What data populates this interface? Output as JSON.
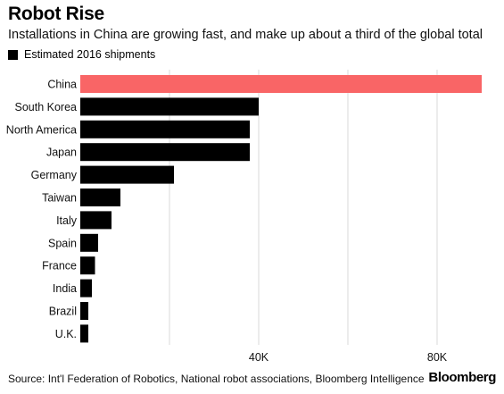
{
  "header": {
    "title": "Robot Rise",
    "subtitle": "Installations in China are growing fast, and make up about a third of the global total"
  },
  "legend": {
    "label": "Estimated 2016 shipments",
    "color": "#000000"
  },
  "footer": {
    "source": "Source: Int'l Federation of Robotics, National robot associations, Bloomberg Intelligence",
    "brand": "Bloomberg"
  },
  "colors": {
    "highlight": "#f96566",
    "bar": "#000000",
    "grid": "#d9d9d9"
  },
  "chart_data": {
    "type": "bar",
    "orientation": "horizontal",
    "title": "Robot Rise",
    "categories": [
      "China",
      "South Korea",
      "North America",
      "Japan",
      "Germany",
      "Taiwan",
      "Italy",
      "Spain",
      "France",
      "India",
      "Brazil",
      "U.K."
    ],
    "series": [
      {
        "name": "Estimated 2016 shipments",
        "values": [
          90000,
          40000,
          38000,
          38000,
          21000,
          9000,
          7000,
          4000,
          3300,
          2600,
          1800,
          1800
        ]
      }
    ],
    "highlight_category": "China",
    "xlim": [
      0,
      90000
    ],
    "xticks": [
      40000,
      80000
    ],
    "xtick_labels": [
      "40K",
      "80K"
    ],
    "gridlines": [
      20000,
      40000,
      60000,
      80000
    ],
    "grid": true
  }
}
